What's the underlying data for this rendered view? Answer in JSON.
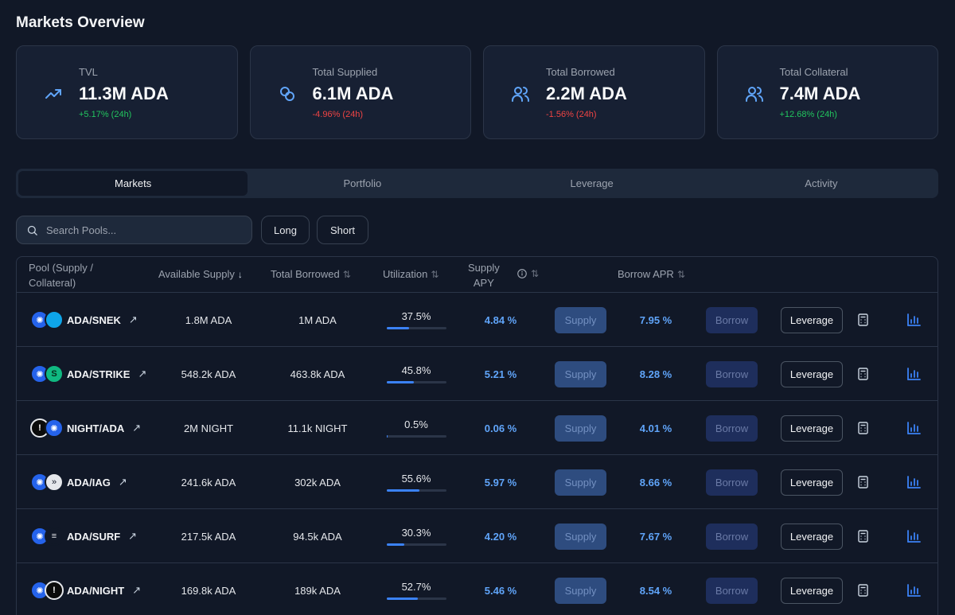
{
  "page": {
    "title": "Markets Overview"
  },
  "stats": [
    {
      "label": "TVL",
      "value": "11.3M ADA",
      "change": "+5.17% (24h)",
      "trend": "up",
      "icon": "trending-up-icon"
    },
    {
      "label": "Total Supplied",
      "value": "6.1M ADA",
      "change": "-4.96% (24h)",
      "trend": "down",
      "icon": "coins-icon"
    },
    {
      "label": "Total Borrowed",
      "value": "2.2M ADA",
      "change": "-1.56% (24h)",
      "trend": "down",
      "icon": "users-icon"
    },
    {
      "label": "Total Collateral",
      "value": "7.4M ADA",
      "change": "+12.68% (24h)",
      "trend": "up",
      "icon": "users-icon"
    }
  ],
  "tabs": [
    "Markets",
    "Portfolio",
    "Leverage",
    "Activity"
  ],
  "active_tab": "Markets",
  "search": {
    "placeholder": "Search Pools..."
  },
  "filters": {
    "long": "Long",
    "short": "Short"
  },
  "table": {
    "headers": {
      "pool_line1": "Pool (Supply /",
      "pool_line2": "Collateral)",
      "available_supply": "Available Supply",
      "total_borrowed": "Total Borrowed",
      "utilization": "Utilization",
      "supply_apy_line1": "Supply",
      "supply_apy_line2": "APY",
      "borrow_apr": "Borrow APR"
    },
    "actions": {
      "supply": "Supply",
      "borrow": "Borrow",
      "leverage": "Leverage"
    },
    "rows": [
      {
        "pool": "ADA/SNEK",
        "available": "1.8M ADA",
        "borrowed": "1M ADA",
        "utilization": "37.5%",
        "util_value": 37.5,
        "supply_apy": "4.84 %",
        "borrow_apr": "7.95 %"
      },
      {
        "pool": "ADA/STRIKE",
        "available": "548.2k ADA",
        "borrowed": "463.8k ADA",
        "utilization": "45.8%",
        "util_value": 45.8,
        "supply_apy": "5.21 %",
        "borrow_apr": "8.28 %"
      },
      {
        "pool": "NIGHT/ADA",
        "available": "2M NIGHT",
        "borrowed": "11.1k NIGHT",
        "utilization": "0.5%",
        "util_value": 0.5,
        "supply_apy": "0.06 %",
        "borrow_apr": "4.01 %"
      },
      {
        "pool": "ADA/IAG",
        "available": "241.6k ADA",
        "borrowed": "302k ADA",
        "utilization": "55.6%",
        "util_value": 55.6,
        "supply_apy": "5.97 %",
        "borrow_apr": "8.66 %"
      },
      {
        "pool": "ADA/SURF",
        "available": "217.5k ADA",
        "borrowed": "94.5k ADA",
        "utilization": "30.3%",
        "util_value": 30.3,
        "supply_apy": "4.20 %",
        "borrow_apr": "7.67 %"
      },
      {
        "pool": "ADA/NIGHT",
        "available": "169.8k ADA",
        "borrowed": "189k ADA",
        "utilization": "52.7%",
        "util_value": 52.7,
        "supply_apy": "5.46 %",
        "borrow_apr": "8.54 %"
      }
    ]
  },
  "colors": {
    "accent": "#3b82f6",
    "positive": "#22c55e",
    "negative": "#ef4444",
    "background": "#111827"
  }
}
